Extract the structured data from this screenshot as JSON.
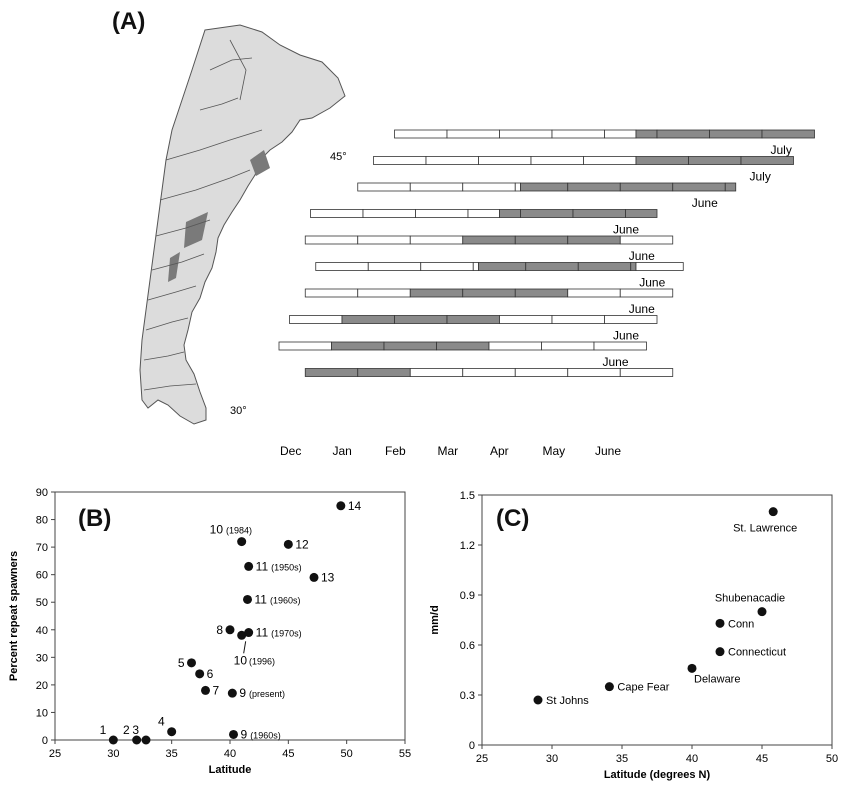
{
  "panel_labels": {
    "a": "(A)",
    "b": "(B)",
    "c": "(C)"
  },
  "map": {
    "lat_45": "45°",
    "lat_30": "30°"
  },
  "colors": {
    "filled": "#8a8a8a",
    "empty": "#ffffff",
    "stroke": "#333333",
    "map_fill": "#dcdcdc",
    "map_dark": "#7a7a7a"
  },
  "chart_data": [
    {
      "panel": "(A)",
      "type": "bar",
      "x_tick_labels": [
        "Dec",
        "Jan",
        "Feb",
        "Mar",
        "Apr",
        "May",
        "June"
      ],
      "rows": [
        {
          "start_month": 2.6,
          "end_month": 10.6,
          "filled_from": 7.2,
          "filled_to": 10.6,
          "label": "July",
          "lat": "45°"
        },
        {
          "start_month": 2.2,
          "end_month": 10.2,
          "filled_from": 7.2,
          "filled_to": 10.2,
          "label": "July"
        },
        {
          "start_month": 1.9,
          "end_month": 9.1,
          "filled_from": 5.0,
          "filled_to": 9.1,
          "label": "June"
        },
        {
          "start_month": 1.0,
          "end_month": 7.6,
          "filled_from": 4.6,
          "filled_to": 7.6,
          "label": "June"
        },
        {
          "start_month": 0.9,
          "end_month": 7.9,
          "filled_from": 3.9,
          "filled_to": 6.9,
          "label": "June"
        },
        {
          "start_month": 1.1,
          "end_month": 8.1,
          "filled_from": 4.2,
          "filled_to": 7.2,
          "label": "June"
        },
        {
          "start_month": 0.9,
          "end_month": 7.9,
          "filled_from": 2.9,
          "filled_to": 5.9,
          "label": "June"
        },
        {
          "start_month": 0.6,
          "end_month": 7.6,
          "filled_from": 1.6,
          "filled_to": 4.6,
          "label": "June"
        },
        {
          "start_month": 0.4,
          "end_month": 7.4,
          "filled_from": 1.4,
          "filled_to": 4.4,
          "label": "June",
          "lat": "30°"
        },
        {
          "start_month": 0.9,
          "end_month": 7.9,
          "filled_from": 0.9,
          "filled_to": 2.9,
          "label": ""
        }
      ]
    },
    {
      "panel": "(B)",
      "type": "scatter",
      "xlabel": "Latitude",
      "ylabel": "Percent repeat spawners",
      "xlim": [
        25,
        55
      ],
      "ylim": [
        0,
        90
      ],
      "x_ticks": [
        25,
        30,
        35,
        40,
        45,
        50,
        55
      ],
      "y_ticks": [
        0,
        10,
        20,
        30,
        40,
        50,
        60,
        70,
        80,
        90
      ],
      "points": [
        {
          "x": 30.0,
          "y": 0,
          "label": "1",
          "note": "",
          "pos": "tl"
        },
        {
          "x": 32.0,
          "y": 0,
          "label": "2",
          "note": "",
          "pos": "tl"
        },
        {
          "x": 32.8,
          "y": 0,
          "label": "3",
          "note": "",
          "pos": "tl"
        },
        {
          "x": 35.0,
          "y": 3,
          "label": "4",
          "note": "",
          "pos": "tl"
        },
        {
          "x": 36.7,
          "y": 28,
          "label": "5",
          "note": "",
          "pos": "l"
        },
        {
          "x": 37.4,
          "y": 24,
          "label": "6",
          "note": "",
          "pos": "r"
        },
        {
          "x": 37.9,
          "y": 18,
          "label": "7",
          "note": "",
          "pos": "r"
        },
        {
          "x": 40.0,
          "y": 40,
          "label": "8",
          "note": "",
          "pos": "l"
        },
        {
          "x": 40.2,
          "y": 17,
          "label": "9",
          "note": "(present)",
          "pos": "r"
        },
        {
          "x": 40.3,
          "y": 2,
          "label": "9",
          "note": "(1960s)",
          "pos": "r"
        },
        {
          "x": 41.0,
          "y": 72,
          "label": "10",
          "note": "(1984)",
          "pos": "tl"
        },
        {
          "x": 41.0,
          "y": 38,
          "label": "10",
          "note": "(1996)",
          "pos": "arrow"
        },
        {
          "x": 41.6,
          "y": 63,
          "label": "11",
          "note": "(1950s)",
          "pos": "r"
        },
        {
          "x": 41.5,
          "y": 51,
          "label": "11",
          "note": "(1960s)",
          "pos": "r"
        },
        {
          "x": 41.6,
          "y": 39,
          "label": "11",
          "note": "(1970s)",
          "pos": "r"
        },
        {
          "x": 45.0,
          "y": 71,
          "label": "12",
          "note": "",
          "pos": "r"
        },
        {
          "x": 47.2,
          "y": 59,
          "label": "13",
          "note": "",
          "pos": "r"
        },
        {
          "x": 49.5,
          "y": 85,
          "label": "14",
          "note": "",
          "pos": "r"
        }
      ]
    },
    {
      "panel": "(C)",
      "type": "scatter",
      "xlabel": "Latitude (degrees N)",
      "ylabel": "mm/d",
      "xlim": [
        25,
        50
      ],
      "ylim": [
        0,
        1.5
      ],
      "x_ticks": [
        25,
        30,
        35,
        40,
        45,
        50
      ],
      "y_ticks": [
        "0",
        "0.3",
        "0.6",
        "0.9",
        "1.2",
        "1.5"
      ],
      "points": [
        {
          "x": 29.0,
          "y": 0.27,
          "label": "St Johns",
          "pos": "r"
        },
        {
          "x": 34.1,
          "y": 0.35,
          "label": "Cape Fear",
          "pos": "r"
        },
        {
          "x": 40.0,
          "y": 0.46,
          "label": "Delaware",
          "pos": "br"
        },
        {
          "x": 42.0,
          "y": 0.56,
          "label": "Connecticut",
          "pos": "r"
        },
        {
          "x": 42.0,
          "y": 0.73,
          "label": "Conn",
          "pos": "r"
        },
        {
          "x": 45.0,
          "y": 0.8,
          "label": "Shubenacadie",
          "pos": "t"
        },
        {
          "x": 45.8,
          "y": 1.4,
          "label": "St. Lawrence",
          "pos": "b"
        }
      ]
    }
  ]
}
